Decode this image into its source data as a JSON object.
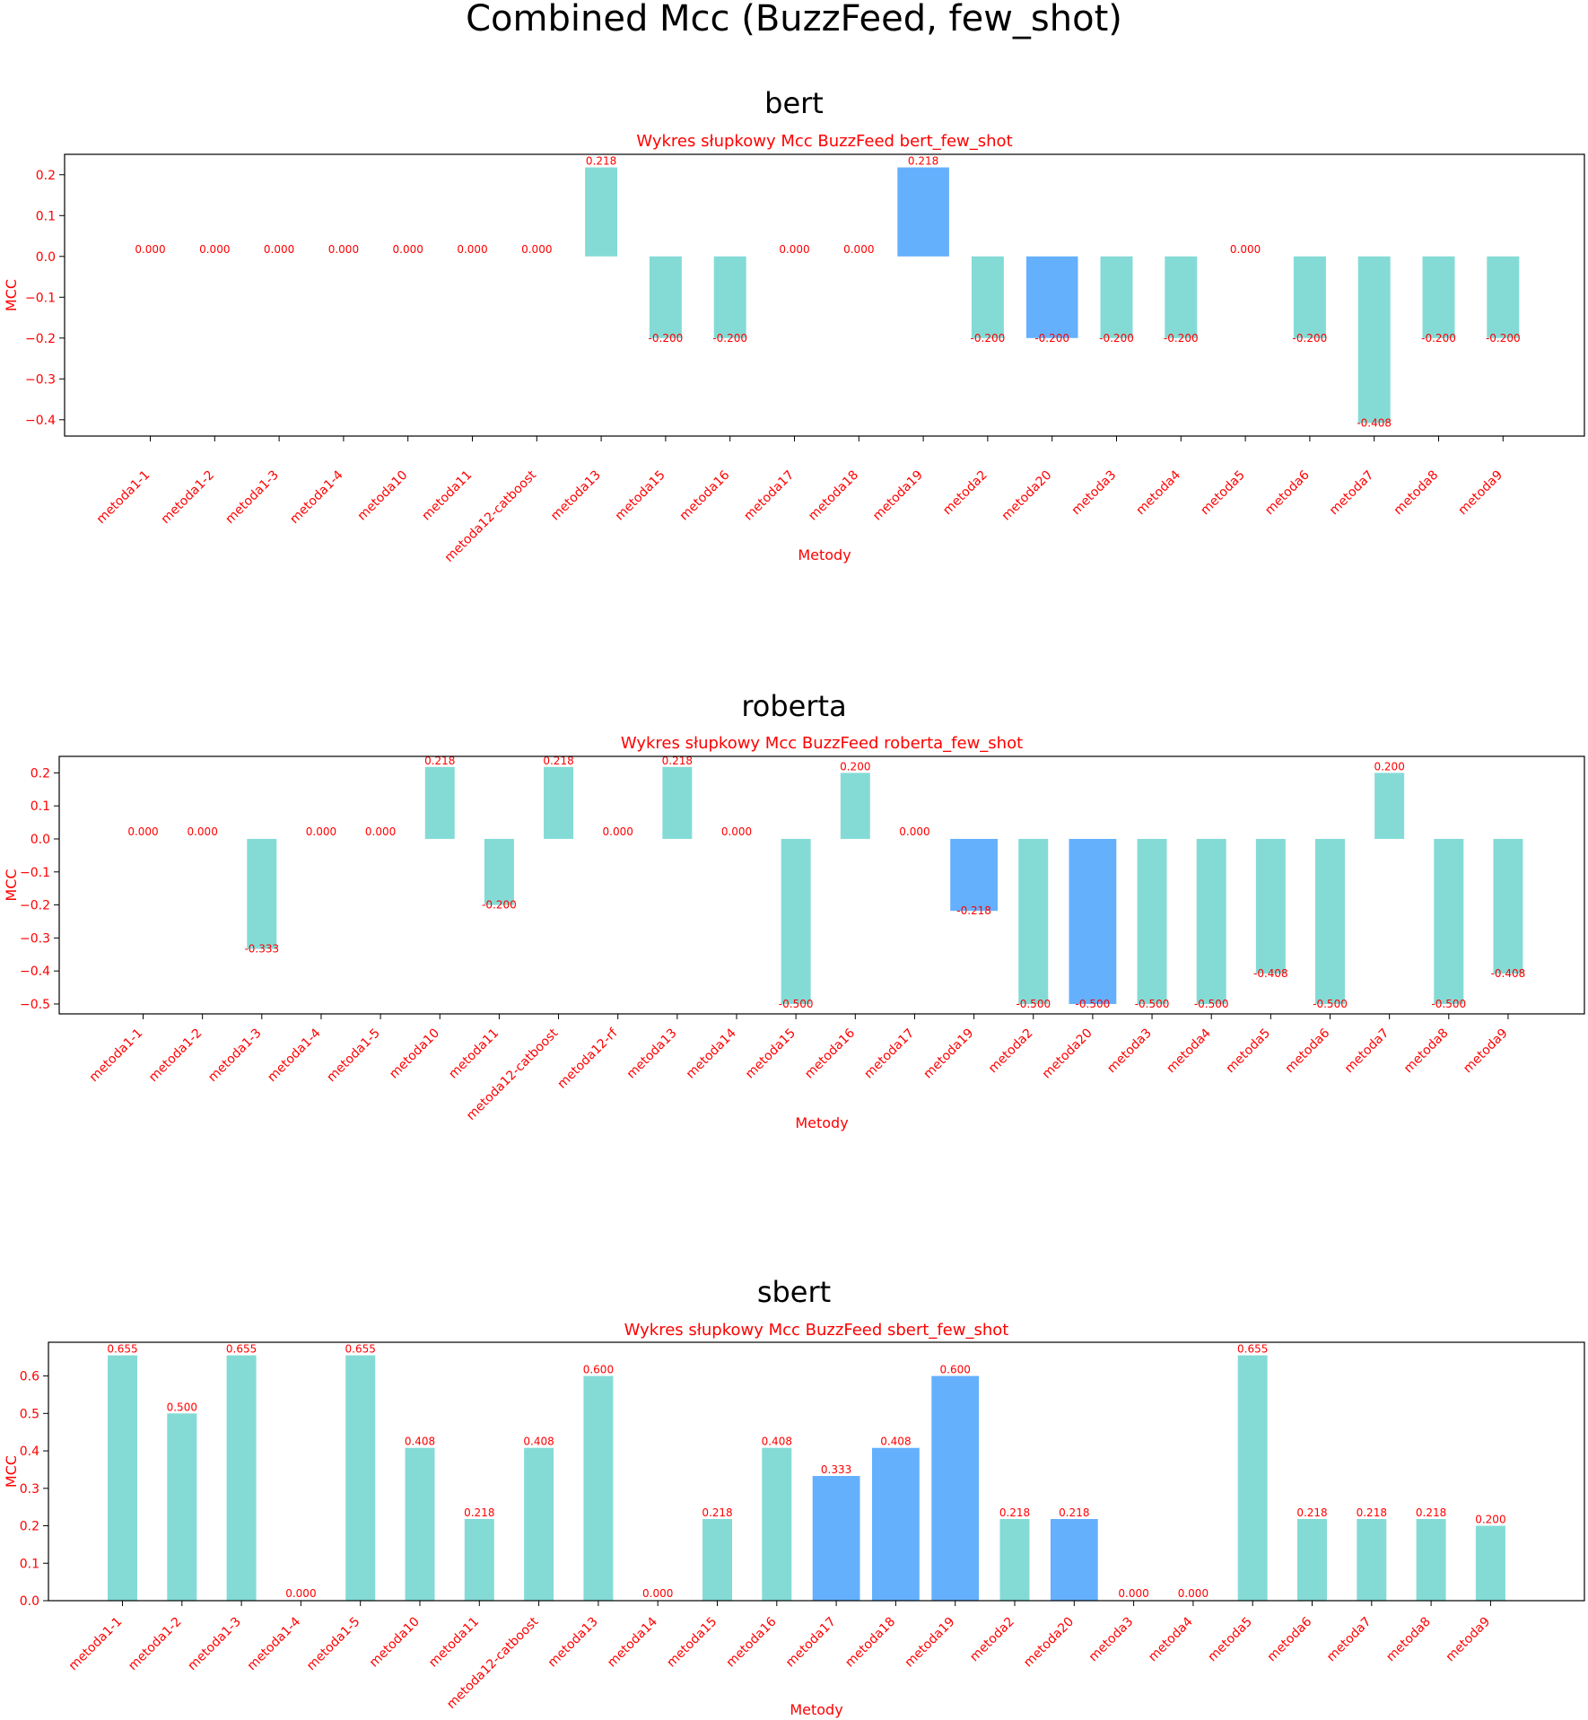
{
  "figure_title": "Combined Mcc (BuzzFeed, few_shot)",
  "colors": {
    "text": "#ff0000",
    "bar": "#84dbd6",
    "bar_highlight": "#64b0fd",
    "axis": "#000000"
  },
  "chart_data": [
    {
      "type": "bar",
      "panel_title": "bert",
      "title": "Wykres słupkowy Mcc BuzzFeed bert_few_shot",
      "xlabel": "Metody",
      "ylabel": "MCC",
      "ylim": [
        -0.44,
        0.25
      ],
      "yticks": [
        -0.4,
        -0.3,
        -0.2,
        -0.1,
        0.0,
        0.1,
        0.2
      ],
      "ytick_labels": [
        "−0.4",
        "−0.3",
        "−0.2",
        "−0.1",
        "0.0",
        "0.1",
        "0.2"
      ],
      "bar_width": 0.5,
      "categories": [
        "metoda1-1",
        "metoda1-2",
        "metoda1-3",
        "metoda1-4",
        "metoda10",
        "metoda11",
        "metoda12-catboost",
        "metoda13",
        "metoda15",
        "metoda16",
        "metoda17",
        "metoda18",
        "metoda19",
        "metoda2",
        "metoda20",
        "metoda3",
        "metoda4",
        "metoda5",
        "metoda6",
        "metoda7",
        "metoda8",
        "metoda9"
      ],
      "values": [
        0.0,
        0.0,
        0.0,
        0.0,
        0.0,
        0.0,
        0.0,
        0.218,
        -0.2,
        -0.2,
        0.0,
        0.0,
        0.218,
        -0.2,
        -0.2,
        -0.2,
        -0.2,
        0.0,
        -0.2,
        -0.408,
        -0.2,
        -0.2
      ],
      "labels": [
        "0.000",
        "0.000",
        "0.000",
        "0.000",
        "0.000",
        "0.000",
        "0.000",
        "0.218",
        "-0.200",
        "-0.200",
        "0.000",
        "0.000",
        "0.218",
        "-0.200",
        "-0.200",
        "-0.200",
        "-0.200",
        "0.000",
        "-0.200",
        "-0.408",
        "-0.200",
        "-0.200"
      ],
      "highlighted": [
        "metoda19",
        "metoda20"
      ],
      "grid": false,
      "legend": "none"
    },
    {
      "type": "bar",
      "panel_title": "roberta",
      "title": "Wykres słupkowy Mcc BuzzFeed roberta_few_shot",
      "xlabel": "Metody",
      "ylabel": "MCC",
      "ylim": [
        -0.53,
        0.25
      ],
      "yticks": [
        -0.5,
        -0.4,
        -0.3,
        -0.2,
        -0.1,
        0.0,
        0.1,
        0.2
      ],
      "ytick_labels": [
        "−0.5",
        "−0.4",
        "−0.3",
        "−0.2",
        "−0.1",
        "0.0",
        "0.1",
        "0.2"
      ],
      "bar_width": 0.5,
      "categories": [
        "metoda1-1",
        "metoda1-2",
        "metoda1-3",
        "metoda1-4",
        "metoda1-5",
        "metoda10",
        "metoda11",
        "metoda12-catboost",
        "metoda12-rf",
        "metoda13",
        "metoda14",
        "metoda15",
        "metoda16",
        "metoda17",
        "metoda19",
        "metoda2",
        "metoda20",
        "metoda3",
        "metoda4",
        "metoda5",
        "metoda6",
        "metoda7",
        "metoda8",
        "metoda9"
      ],
      "values": [
        0.0,
        0.0,
        -0.333,
        0.0,
        0.0,
        0.218,
        -0.2,
        0.218,
        0.0,
        0.218,
        0.0,
        -0.5,
        0.2,
        0.0,
        -0.218,
        -0.5,
        -0.5,
        -0.5,
        -0.5,
        -0.408,
        -0.5,
        0.2,
        -0.5,
        -0.408
      ],
      "labels": [
        "0.000",
        "0.000",
        "-0.333",
        "0.000",
        "0.000",
        "0.218",
        "-0.200",
        "0.218",
        "0.000",
        "0.218",
        "0.000",
        "-0.500",
        "0.200",
        "0.000",
        "-0.218",
        "-0.500",
        "-0.500",
        "-0.500",
        "-0.500",
        "-0.408",
        "-0.500",
        "0.200",
        "-0.500",
        "-0.408"
      ],
      "highlighted": [
        "metoda19",
        "metoda20"
      ],
      "grid": false,
      "legend": "none"
    },
    {
      "type": "bar",
      "panel_title": "sbert",
      "title": "Wykres słupkowy Mcc BuzzFeed sbert_few_shot",
      "xlabel": "Metody",
      "ylabel": "MCC",
      "ylim": [
        0.0,
        0.69
      ],
      "yticks": [
        0.0,
        0.1,
        0.2,
        0.3,
        0.4,
        0.5,
        0.6
      ],
      "ytick_labels": [
        "0.0",
        "0.1",
        "0.2",
        "0.3",
        "0.4",
        "0.5",
        "0.6"
      ],
      "bar_width": 0.5,
      "categories": [
        "metoda1-1",
        "metoda1-2",
        "metoda1-3",
        "metoda1-4",
        "metoda1-5",
        "metoda10",
        "metoda11",
        "metoda12-catboost",
        "metoda13",
        "metoda14",
        "metoda15",
        "metoda16",
        "metoda17",
        "metoda18",
        "metoda19",
        "metoda2",
        "metoda20",
        "metoda3",
        "metoda4",
        "metoda5",
        "metoda6",
        "metoda7",
        "metoda8",
        "metoda9"
      ],
      "values": [
        0.655,
        0.5,
        0.655,
        0.0,
        0.655,
        0.408,
        0.218,
        0.408,
        0.6,
        0.0,
        0.218,
        0.408,
        0.333,
        0.408,
        0.6,
        0.218,
        0.218,
        0.0,
        0.0,
        0.655,
        0.218,
        0.218,
        0.218,
        0.2
      ],
      "labels": [
        "0.655",
        "0.500",
        "0.655",
        "0.000",
        "0.655",
        "0.408",
        "0.218",
        "0.408",
        "0.600",
        "0.000",
        "0.218",
        "0.408",
        "0.333",
        "0.408",
        "0.600",
        "0.218",
        "0.218",
        "0.000",
        "0.000",
        "0.655",
        "0.218",
        "0.218",
        "0.218",
        "0.200"
      ],
      "highlighted": [
        "metoda17",
        "metoda18",
        "metoda19",
        "metoda20"
      ],
      "grid": false,
      "legend": "none"
    }
  ]
}
